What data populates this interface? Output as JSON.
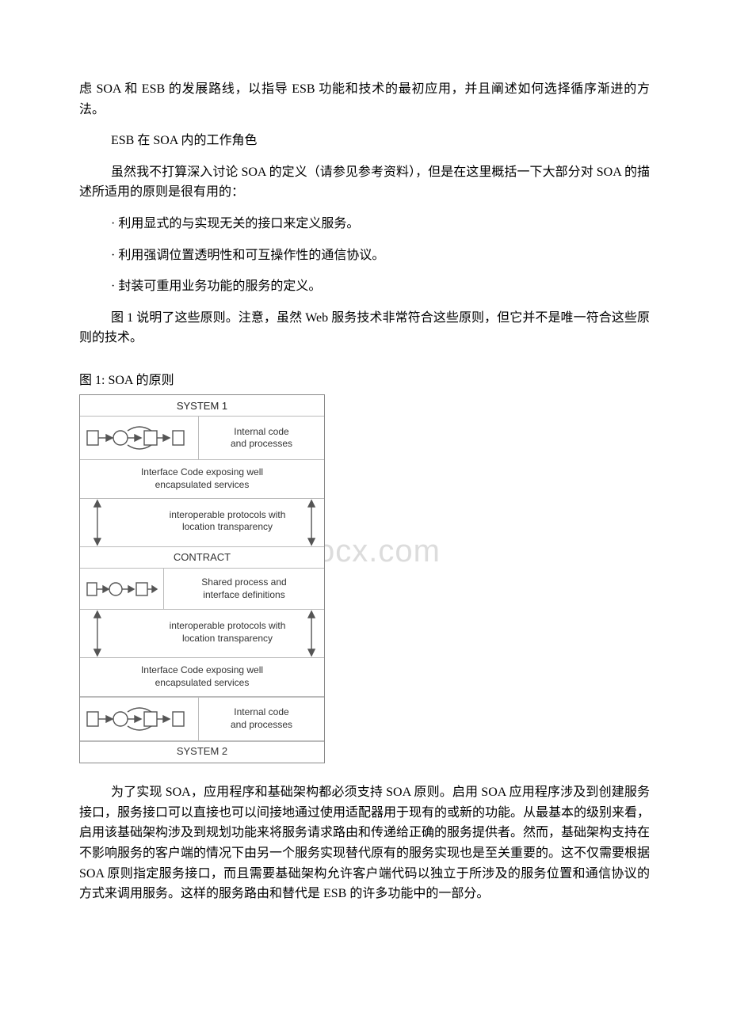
{
  "watermark": "www.bdocx.com",
  "intro_continued": "虑 SOA 和 ESB 的发展路线，以指导 ESB 功能和技术的最初应用，并且阐述如何选择循序渐进的方法。",
  "section_heading": "ESB 在 SOA 内的工作角色",
  "p1": "虽然我不打算深入讨论 SOA 的定义（请参见参考资料），但是在这里概括一下大部分对 SOA 的描述所适用的原则是很有用的：",
  "bullet1": "· 利用显式的与实现无关的接口来定义服务。",
  "bullet2": "· 利用强调位置透明性和可互操作性的通信协议。",
  "bullet3": "· 封装可重用业务功能的服务的定义。",
  "p2": "图 1 说明了这些原则。注意，虽然 Web 服务技术非常符合这些原则，但它并不是唯一符合这些原则的技术。",
  "fig_caption": "图 1: SOA 的原则",
  "diagram": {
    "system1": "SYSTEM 1",
    "system2": "SYSTEM 2",
    "internal_code": "Internal code\nand processes",
    "interface_code": "Interface Code exposing well\nencapsulated services",
    "interop": "interoperable protocols with\nlocation transparency",
    "contract": "CONTRACT",
    "shared_process": "Shared process and\ninterface definitions",
    "colors": {
      "border": "#888888",
      "inner_border": "#bbbbbb",
      "shape_stroke": "#555555",
      "shape_fill": "#ffffff",
      "text": "#333333"
    }
  },
  "p3": "为了实现 SOA，应用程序和基础架构都必须支持 SOA 原则。启用 SOA 应用程序涉及到创建服务接口，服务接口可以直接也可以间接地通过使用适配器用于现有的或新的功能。从最基本的级别来看，启用该基础架构涉及到规划功能来将服务请求路由和传递给正确的服务提供者。然而，基础架构支持在不影响服务的客户端的情况下由另一个服务实现替代原有的服务实现也是至关重要的。这不仅需要根据 SOA 原则指定服务接口，而且需要基础架构允许客户端代码以独立于所涉及的服务位置和通信协议的方式来调用服务。这样的服务路由和替代是 ESB 的许多功能中的一部分。"
}
